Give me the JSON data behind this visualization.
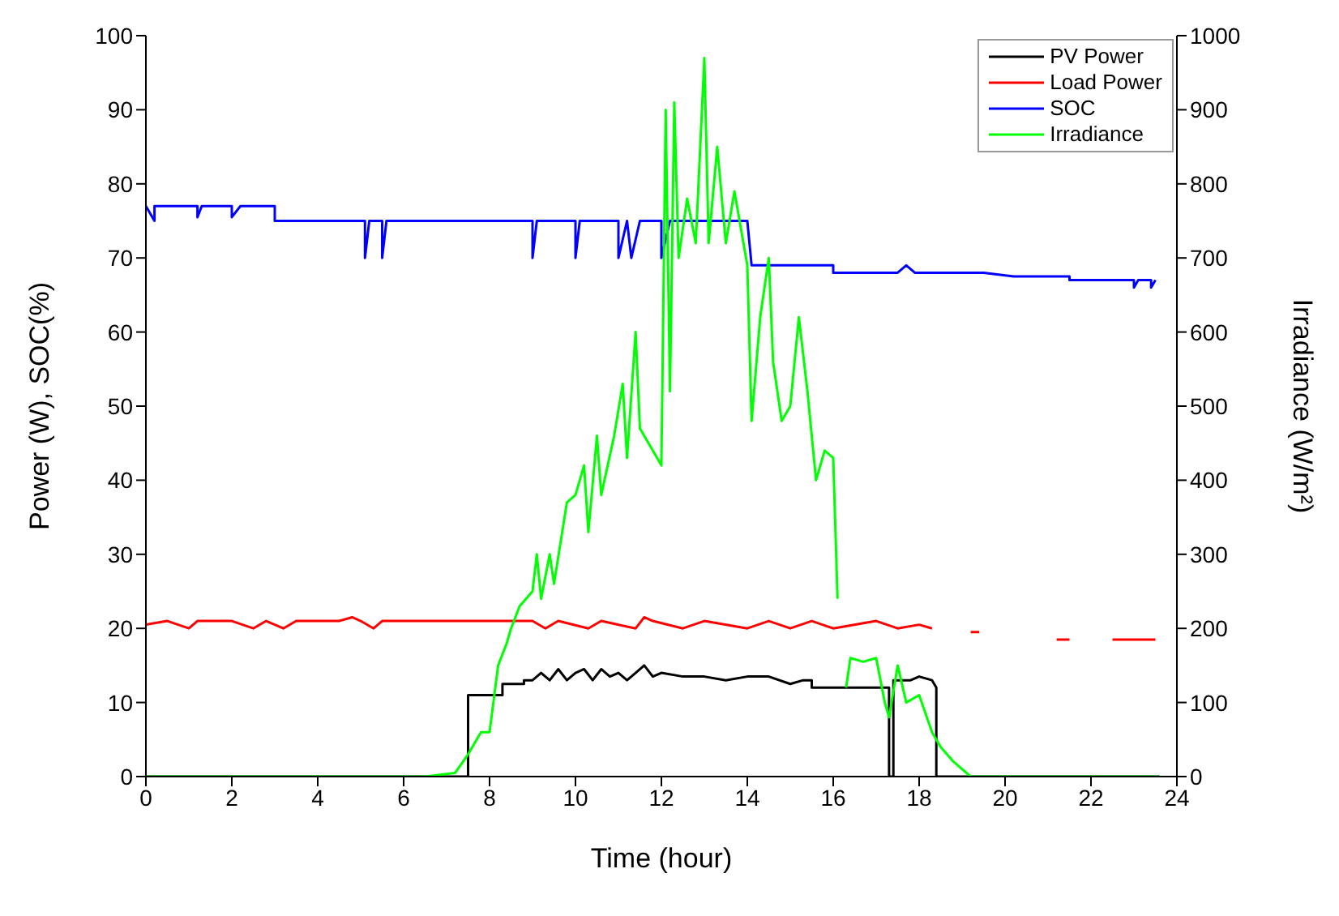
{
  "chart_data": {
    "type": "line",
    "xlabel": "Time (hour)",
    "ylabel": "Power (W), SOC(%)",
    "y2label": "Irradiance (W/m²)",
    "xlim": [
      0,
      24
    ],
    "xticks": [
      0,
      2,
      4,
      6,
      8,
      10,
      12,
      14,
      16,
      18,
      20,
      22,
      24
    ],
    "ylim": [
      0,
      100
    ],
    "yticks": [
      0,
      10,
      20,
      30,
      40,
      50,
      60,
      70,
      80,
      90,
      100
    ],
    "y2lim": [
      0,
      1000
    ],
    "y2ticks": [
      0,
      100,
      200,
      300,
      400,
      500,
      600,
      700,
      800,
      900,
      1000
    ],
    "legend": "top right",
    "marker": "none",
    "line_style": "solid",
    "series": [
      {
        "name": "PV Power",
        "color": "#000000",
        "x": [
          0,
          7.5,
          7.5,
          8.3,
          8.3,
          8.8,
          8.8,
          9.0,
          9.2,
          9.4,
          9.6,
          9.8,
          10.0,
          10.2,
          10.4,
          10.6,
          10.8,
          11.0,
          11.2,
          11.4,
          11.6,
          11.8,
          12.0,
          12.5,
          13.0,
          13.5,
          14.0,
          14.5,
          15.0,
          15.3,
          15.5,
          15.5,
          17.2,
          17.3,
          17.3,
          17.4,
          17.4,
          17.8,
          18.0,
          18.3,
          18.4,
          18.4,
          23.6
        ],
        "values": [
          0,
          0,
          11,
          11,
          12.5,
          12.5,
          13,
          13,
          14,
          13,
          14.5,
          13,
          14,
          14.5,
          13,
          14.5,
          13.5,
          14,
          13,
          14,
          15,
          13.5,
          14,
          13.5,
          13.5,
          13,
          13.5,
          13.5,
          12.5,
          13,
          13,
          12,
          12,
          12,
          0,
          0,
          13,
          13,
          13.5,
          13,
          12,
          0,
          0
        ]
      },
      {
        "name": "Load Power",
        "color": "#ff0000",
        "x": [
          0,
          0.5,
          1,
          1.2,
          2,
          2.5,
          2.8,
          3.2,
          3.5,
          4.5,
          4.8,
          5.0,
          5.3,
          5.5,
          9,
          9.3,
          9.6,
          10.3,
          10.6,
          11.4,
          11.6,
          11.8,
          12.5,
          13,
          14,
          14.5,
          15,
          15.5,
          16,
          17,
          17.5,
          18,
          18.3,
          18.4,
          19.2,
          19.4,
          19.5,
          21.2,
          21.5,
          21.6,
          22.5,
          23.5
        ],
        "values": [
          20.5,
          21,
          20,
          21,
          21,
          20,
          21,
          20,
          21,
          21,
          21.5,
          21,
          20,
          21,
          21,
          20,
          21,
          20,
          21,
          20,
          21.5,
          21,
          20,
          21,
          20,
          21,
          20,
          21,
          20,
          21,
          20,
          20.5,
          20,
          null,
          19.5,
          19.5,
          null,
          18.5,
          18.5,
          null,
          18.5,
          18.5
        ]
      },
      {
        "name": "SOC",
        "color": "#0000ff",
        "x": [
          0,
          0.2,
          0.2,
          1.2,
          1.2,
          1.3,
          2.0,
          2.0,
          2.2,
          3.0,
          3.0,
          5.1,
          5.1,
          5.2,
          5.5,
          5.5,
          5.6,
          9.0,
          9.0,
          9.1,
          10.0,
          10.0,
          10.1,
          11.0,
          11.0,
          11.2,
          11.3,
          11.5,
          12.0,
          12.0,
          12.2,
          14.0,
          14.1,
          15.0,
          16.0,
          16.0,
          17.5,
          17.7,
          17.9,
          19.5,
          20.2,
          21.5,
          21.5,
          23.0,
          23.0,
          23.1,
          23.4,
          23.4,
          23.5
        ],
        "values": [
          77,
          75,
          77,
          77,
          75.5,
          77,
          77,
          75.5,
          77,
          77,
          75,
          75,
          70,
          75,
          75,
          70,
          75,
          75,
          70,
          75,
          75,
          70,
          75,
          75,
          70,
          75,
          70,
          75,
          75,
          70,
          75,
          75,
          69,
          69,
          69,
          68,
          68,
          69,
          68,
          68,
          67.5,
          67.5,
          67,
          67,
          66,
          67,
          67,
          66,
          67
        ]
      },
      {
        "name": "Irradiance",
        "color": "#00ff00",
        "axis": "y2",
        "x": [
          0,
          6.5,
          7.2,
          7.5,
          7.8,
          8.0,
          8.2,
          8.4,
          8.5,
          8.7,
          9.0,
          9.1,
          9.2,
          9.4,
          9.5,
          9.8,
          10.0,
          10.2,
          10.3,
          10.5,
          10.6,
          10.9,
          11.1,
          11.2,
          11.4,
          11.5,
          11.8,
          12.0,
          12.1,
          12.2,
          12.3,
          12.4,
          12.6,
          12.8,
          13.0,
          13.1,
          13.3,
          13.5,
          13.7,
          14.0,
          14.1,
          14.3,
          14.5,
          14.6,
          14.8,
          15.0,
          15.2,
          15.4,
          15.6,
          15.8,
          16.0,
          16.1,
          16.2,
          16.3,
          16.4,
          16.7,
          17.0,
          17.2,
          17.3,
          17.5,
          17.7,
          18.0,
          18.3,
          18.5,
          18.8,
          19.2,
          23.6
        ],
        "values": [
          0,
          0,
          5,
          30,
          60,
          60,
          150,
          180,
          200,
          230,
          250,
          300,
          240,
          300,
          260,
          370,
          380,
          420,
          330,
          460,
          380,
          460,
          530,
          430,
          600,
          470,
          440,
          420,
          900,
          520,
          910,
          700,
          780,
          720,
          970,
          720,
          850,
          720,
          790,
          690,
          480,
          620,
          700,
          560,
          480,
          500,
          620,
          520,
          400,
          440,
          430,
          240,
          null,
          120,
          160,
          155,
          160,
          100,
          80,
          150,
          100,
          110,
          60,
          40,
          20,
          0,
          0
        ]
      }
    ]
  }
}
